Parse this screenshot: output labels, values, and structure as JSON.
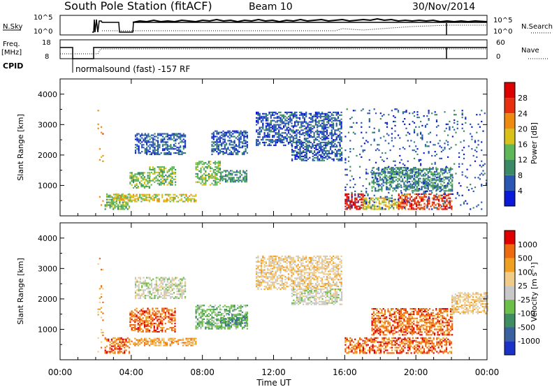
{
  "header": {
    "station": "South Pole Station (fitACF)",
    "beam": "Beam 10",
    "date": "30/Nov/2014"
  },
  "sky_panel": {
    "left_label": "N.Sky",
    "right_label": "N.Search",
    "left_ticks": [
      "10^5",
      "10^0"
    ],
    "right_ticks": [
      "10^5",
      "10^0"
    ]
  },
  "freq_panel": {
    "left_label_1": "Freq.",
    "left_label_2": "[MHz]",
    "right_label": "Nave",
    "left_ticks": [
      "18",
      "8"
    ],
    "right_ticks": [
      "60",
      "0"
    ],
    "cpid_label": "CPID",
    "cpid_text": "normalsound (fast) -157 RF"
  },
  "x_axis": {
    "ticks": [
      "00:00",
      "04:00",
      "08:00",
      "12:00",
      "16:00",
      "20:00",
      "00:00"
    ],
    "label": "Time UT"
  },
  "chart_data": [
    {
      "type": "heatmap",
      "name": "power",
      "ylabel": "Slant Range [km]",
      "yticks": [
        "1000",
        "2000",
        "3000",
        "4000"
      ],
      "ylim": [
        0,
        4500
      ],
      "xlim_hours": [
        0,
        24
      ],
      "colorbar": {
        "label": "Power [dB]",
        "ticks": [
          "4",
          "8",
          "12",
          "16",
          "20",
          "24",
          "28"
        ],
        "colors": [
          "#0a1ad8",
          "#2a56b4",
          "#3a8a66",
          "#5eb85a",
          "#d8c21a",
          "#ee8a10",
          "#e83010",
          "#dc0000"
        ]
      },
      "regions": [
        {
          "t": [
            2.1,
            2.4
          ],
          "r": [
            200,
            3500
          ],
          "bin": 5
        },
        {
          "t": [
            2.5,
            3.9
          ],
          "r": [
            200,
            700
          ],
          "bin": 3
        },
        {
          "t": [
            2.8,
            3.9
          ],
          "r": [
            500,
            700
          ],
          "bin": 4
        },
        {
          "t": [
            3.9,
            7.6
          ],
          "r": [
            450,
            700
          ],
          "bin": 4
        },
        {
          "t": [
            3.9,
            5.0
          ],
          "r": [
            900,
            1400
          ],
          "bin": 3
        },
        {
          "t": [
            5.0,
            6.5
          ],
          "r": [
            1000,
            1600
          ],
          "bin": 3
        },
        {
          "t": [
            4.2,
            7.0
          ],
          "r": [
            2000,
            2700
          ],
          "bin": 1
        },
        {
          "t": [
            7.6,
            9.0
          ],
          "r": [
            1000,
            1800
          ],
          "bin": 3
        },
        {
          "t": [
            8.5,
            10.5
          ],
          "r": [
            2000,
            2800
          ],
          "bin": 1
        },
        {
          "t": [
            9.0,
            10.5
          ],
          "r": [
            1100,
            1500
          ],
          "bin": 2
        },
        {
          "t": [
            11.0,
            15.8
          ],
          "r": [
            2300,
            3400
          ],
          "bin": 1
        },
        {
          "t": [
            13.0,
            15.8
          ],
          "r": [
            1800,
            2300
          ],
          "bin": 1
        },
        {
          "t": [
            16.0,
            17.0
          ],
          "r": [
            200,
            700
          ],
          "bin": 7
        },
        {
          "t": [
            17.0,
            19.0
          ],
          "r": [
            200,
            600
          ],
          "bin": 4
        },
        {
          "t": [
            19.0,
            22.0
          ],
          "r": [
            200,
            700
          ],
          "bin": 6
        },
        {
          "t": [
            17.5,
            22.0
          ],
          "r": [
            800,
            1600
          ],
          "bin": 2
        },
        {
          "t": [
            16.0,
            24.0
          ],
          "r": [
            200,
            3500
          ],
          "bin": 1
        }
      ]
    },
    {
      "type": "heatmap",
      "name": "velocity",
      "ylabel": "Slant Range [km]",
      "yticks": [
        "1000",
        "2000",
        "3000",
        "4000"
      ],
      "ylim": [
        0,
        4500
      ],
      "xlim_hours": [
        0,
        24
      ],
      "colorbar": {
        "label": "Velocity [m s⁻¹]",
        "ticks": [
          "1000",
          "500",
          "100",
          "25",
          "-25",
          "-100",
          "-500",
          "-1000"
        ],
        "colors": [
          "#1a32c8",
          "#3a62a0",
          "#3e8e62",
          "#6cc04a",
          "#c8c8c8",
          "#f0cc88",
          "#f0a020",
          "#ee6a10",
          "#e00000"
        ]
      },
      "regions": [
        {
          "t": [
            2.1,
            2.4
          ],
          "r": [
            200,
            3500
          ],
          "bin": 6
        },
        {
          "t": [
            2.5,
            3.9
          ],
          "r": [
            200,
            700
          ],
          "bin": 7
        },
        {
          "t": [
            3.9,
            7.6
          ],
          "r": [
            450,
            700
          ],
          "bin": 6
        },
        {
          "t": [
            3.9,
            6.5
          ],
          "r": [
            900,
            1700
          ],
          "bin": 7
        },
        {
          "t": [
            4.2,
            7.0
          ],
          "r": [
            2000,
            2700
          ],
          "bin": 4
        },
        {
          "t": [
            7.6,
            10.5
          ],
          "r": [
            1000,
            1800
          ],
          "bin": 3
        },
        {
          "t": [
            9.0,
            10.5
          ],
          "r": [
            1100,
            1500
          ],
          "bin": 2
        },
        {
          "t": [
            11.0,
            15.8
          ],
          "r": [
            2300,
            3400
          ],
          "bin": 5
        },
        {
          "t": [
            13.0,
            15.8
          ],
          "r": [
            1800,
            2300
          ],
          "bin": 4
        },
        {
          "t": [
            16.0,
            17.0
          ],
          "r": [
            200,
            700
          ],
          "bin": 7
        },
        {
          "t": [
            17.0,
            22.0
          ],
          "r": [
            200,
            700
          ],
          "bin": 7
        },
        {
          "t": [
            17.5,
            22.0
          ],
          "r": [
            800,
            1700
          ],
          "bin": 7
        },
        {
          "t": [
            22.0,
            24.0
          ],
          "r": [
            1500,
            2200
          ],
          "bin": 5
        }
      ]
    }
  ]
}
